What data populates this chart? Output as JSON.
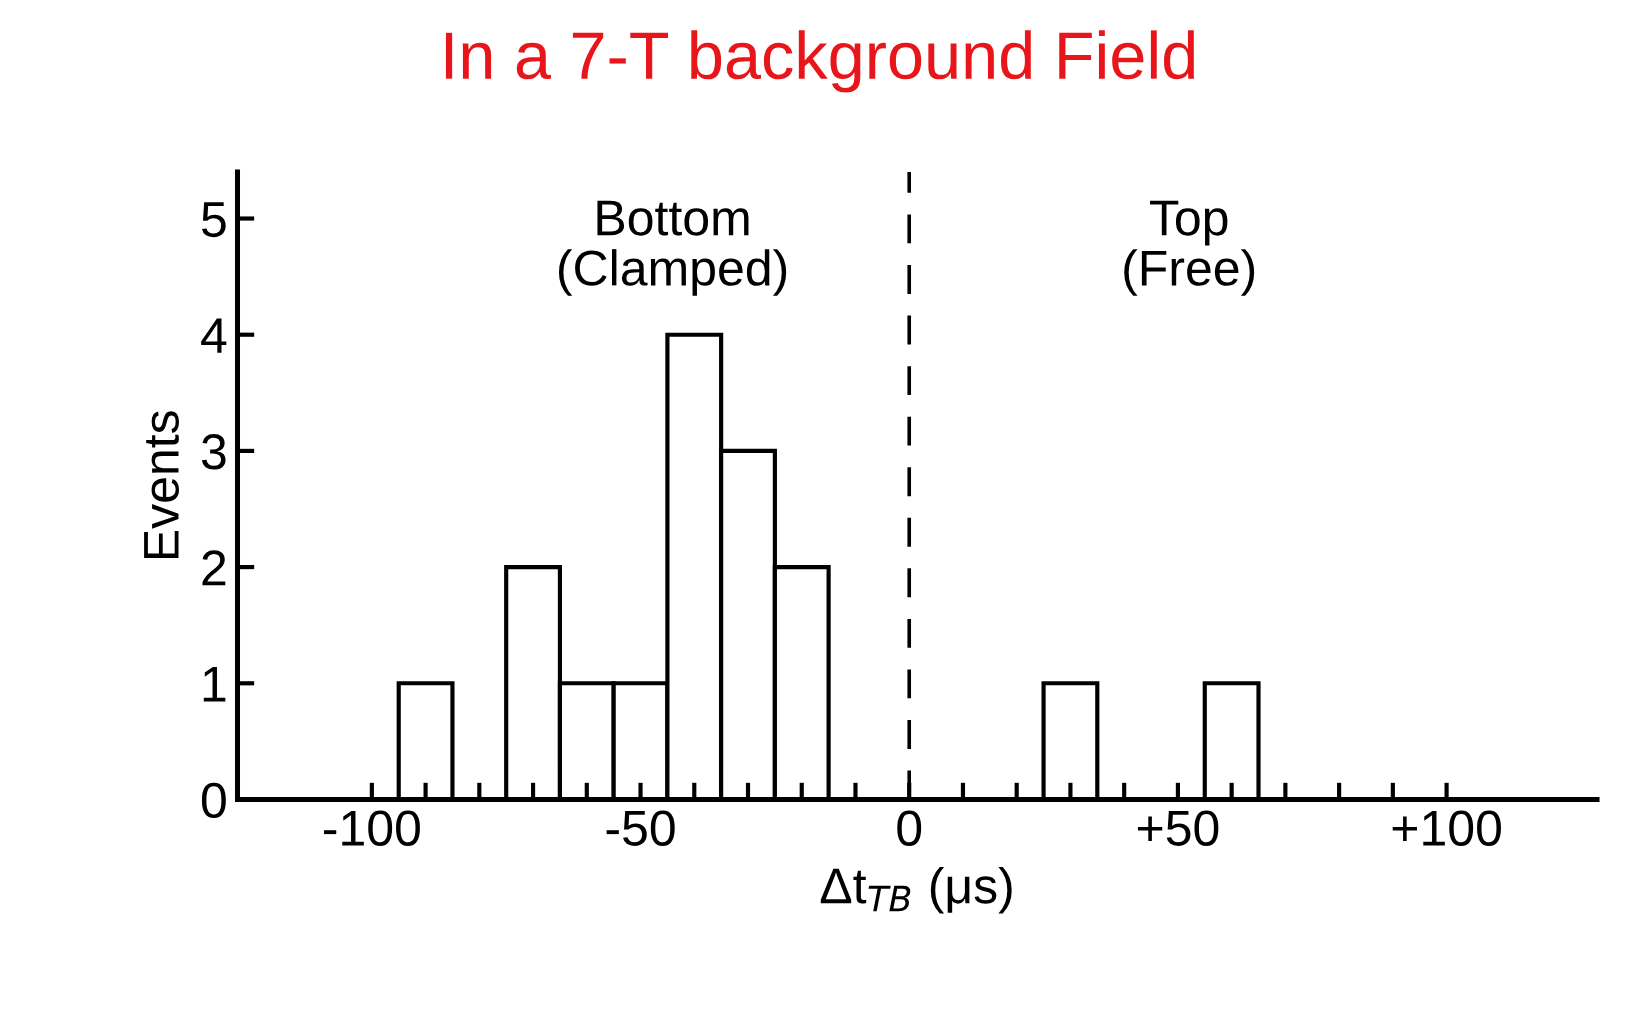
{
  "chart_data": {
    "type": "histogram",
    "title": "In a 7-T background Field",
    "xlabel": "Δt$_{TB}$ (μs)",
    "ylabel": "Events",
    "bins": [
      -95,
      -85,
      -75,
      -65,
      -55,
      -45,
      -35,
      -25,
      -15,
      -5,
      5,
      15,
      25,
      35,
      45,
      55,
      65
    ],
    "values": [
      1,
      0,
      2,
      1,
      1,
      4,
      3,
      2,
      0,
      0,
      0,
      0,
      1,
      0,
      0,
      1
    ],
    "color": "#ffffff",
    "xlim": [
      -125,
      128
    ],
    "ylim": [
      0,
      5.4
    ],
    "xticks": [
      {
        "value": -100,
        "label": "-100"
      },
      {
        "value": -90,
        "label": null
      },
      {
        "value": -80,
        "label": null
      },
      {
        "value": -70,
        "label": null
      },
      {
        "value": -60,
        "label": null
      },
      {
        "value": -50,
        "label": "-50"
      },
      {
        "value": -40,
        "label": null
      },
      {
        "value": -30,
        "label": null
      },
      {
        "value": -20,
        "label": null
      },
      {
        "value": -10,
        "label": null
      },
      0,
      {
        "value": 10,
        "label": null
      },
      {
        "value": 20,
        "label": null
      },
      {
        "value": 30,
        "label": null
      },
      {
        "value": 40,
        "label": null
      },
      {
        "value": 50,
        "label": "+50"
      },
      {
        "value": 60,
        "label": null
      },
      {
        "value": 70,
        "label": null
      },
      {
        "value": 80,
        "label": null
      },
      {
        "value": 90,
        "label": null
      },
      {
        "value": 100,
        "label": "+100"
      }
    ],
    "yticks": [
      0,
      1,
      2,
      3,
      4,
      5
    ],
    "ref_lines": [
      {
        "axis": "x",
        "value": 0,
        "label": null,
        "line_style": "dashed"
      }
    ],
    "annotations": [
      "Bottom\n(Clamped)",
      "Top\n(Free)"
    ],
    "grid": false,
    "legend": false
  }
}
